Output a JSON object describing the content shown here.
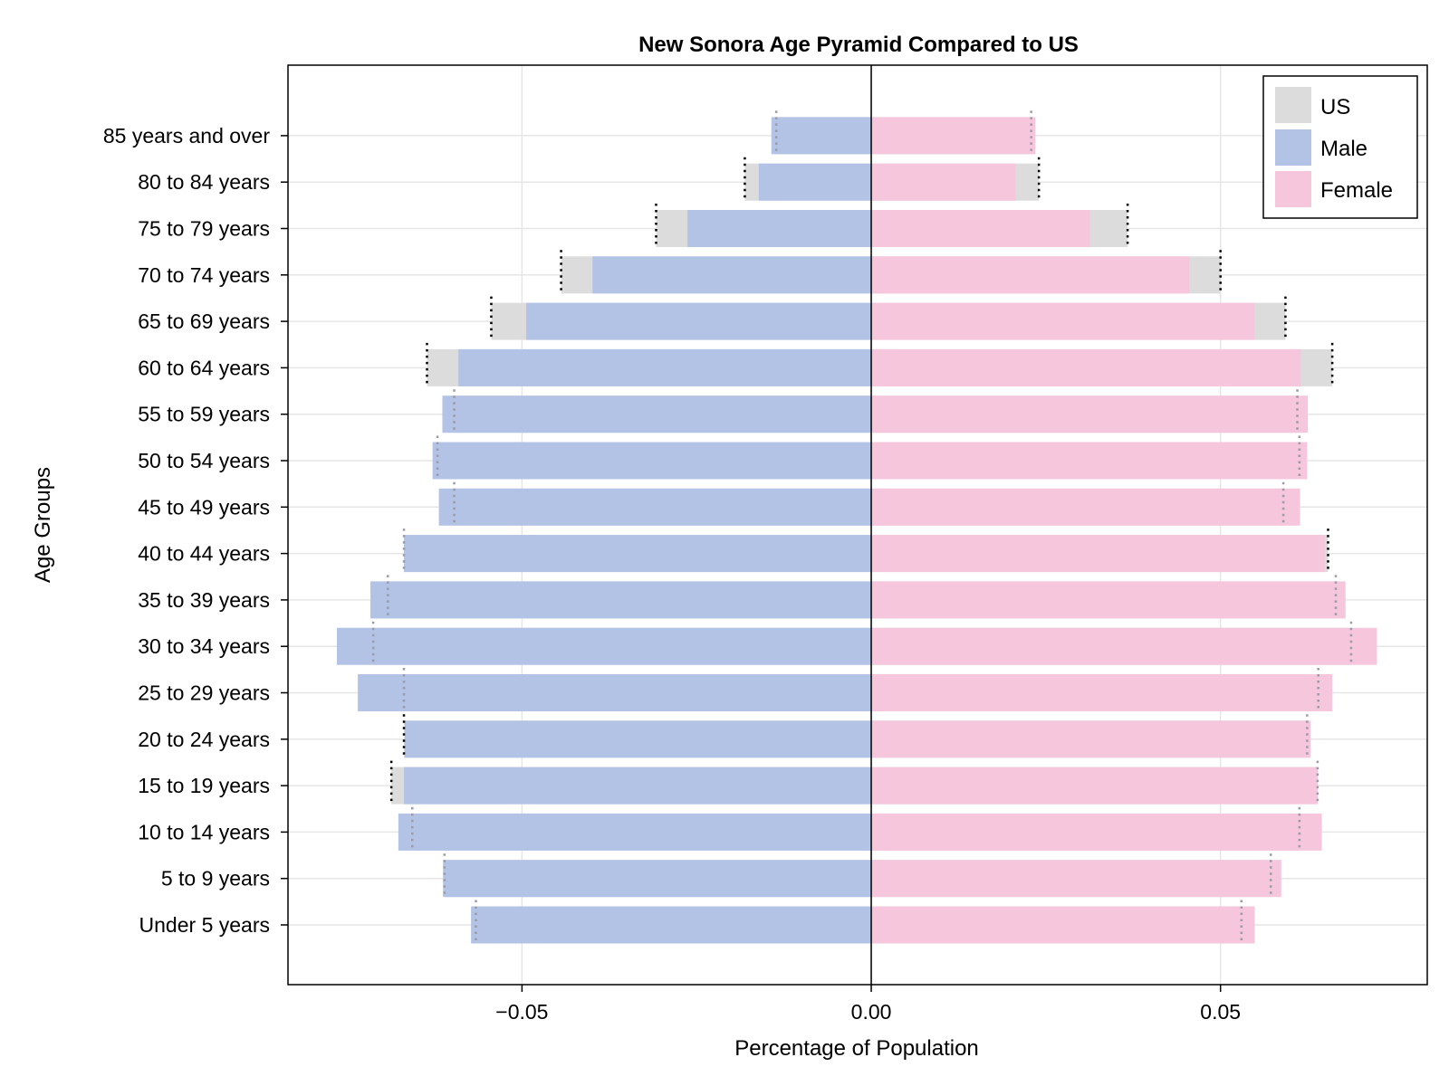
{
  "colors": {
    "us": "#dcdcdc",
    "male": "#b3c3e5",
    "female": "#f5c6dc",
    "grid": "#e6e6e6",
    "frame": "#000000"
  },
  "chart_data": {
    "type": "bar",
    "orientation": "horizontal",
    "title": "New Sonora Age Pyramid Compared to US",
    "xlabel": "Percentage of Population",
    "ylabel": "Age Groups",
    "xlim": [
      -0.0835,
      0.0796
    ],
    "xticks": [
      {
        "value": -0.05,
        "label": "−0.05"
      },
      {
        "value": 0.0,
        "label": "0.00"
      },
      {
        "value": 0.05,
        "label": "0.05"
      }
    ],
    "grid": true,
    "legend_position": "top-right",
    "legend": [
      {
        "key": "us",
        "label": "US"
      },
      {
        "key": "male",
        "label": "Male"
      },
      {
        "key": "female",
        "label": "Female"
      }
    ],
    "categories": [
      "Under 5 years",
      "5 to 9 years",
      "10 to 14 years",
      "15 to 19 years",
      "20 to 24 years",
      "25 to 29 years",
      "30 to 34 years",
      "35 to 39 years",
      "40 to 44 years",
      "45 to 49 years",
      "50 to 54 years",
      "55 to 59 years",
      "60 to 64 years",
      "65 to 69 years",
      "70 to 74 years",
      "75 to 79 years",
      "80 to 84 years",
      "85 years and over"
    ],
    "series": [
      {
        "name": "Male",
        "key": "male",
        "values": [
          -0.0573,
          -0.0613,
          -0.0677,
          -0.0669,
          -0.0668,
          -0.0735,
          -0.0765,
          -0.0717,
          -0.0669,
          -0.0619,
          -0.0628,
          -0.0614,
          -0.0591,
          -0.0494,
          -0.0399,
          -0.0263,
          -0.0161,
          -0.0143
        ]
      },
      {
        "name": "Female",
        "key": "female",
        "values": [
          0.0549,
          0.0587,
          0.0645,
          0.0639,
          0.0629,
          0.066,
          0.0724,
          0.0679,
          0.0649,
          0.0614,
          0.0624,
          0.0625,
          0.0615,
          0.0549,
          0.0455,
          0.0313,
          0.0207,
          0.0235
        ]
      },
      {
        "name": "US",
        "key": "us_male",
        "values": [
          -0.0566,
          -0.0611,
          -0.0657,
          -0.0687,
          -0.0669,
          -0.0669,
          -0.0713,
          -0.0692,
          -0.0669,
          -0.0597,
          -0.0621,
          -0.0597,
          -0.0636,
          -0.0544,
          -0.0444,
          -0.0308,
          -0.0181,
          -0.0136
        ]
      },
      {
        "name": "US",
        "key": "us_female",
        "values": [
          0.053,
          0.0572,
          0.0613,
          0.0639,
          0.0624,
          0.064,
          0.0687,
          0.0665,
          0.0654,
          0.059,
          0.0613,
          0.061,
          0.066,
          0.0593,
          0.05,
          0.0367,
          0.024,
          0.0229
        ]
      }
    ]
  }
}
